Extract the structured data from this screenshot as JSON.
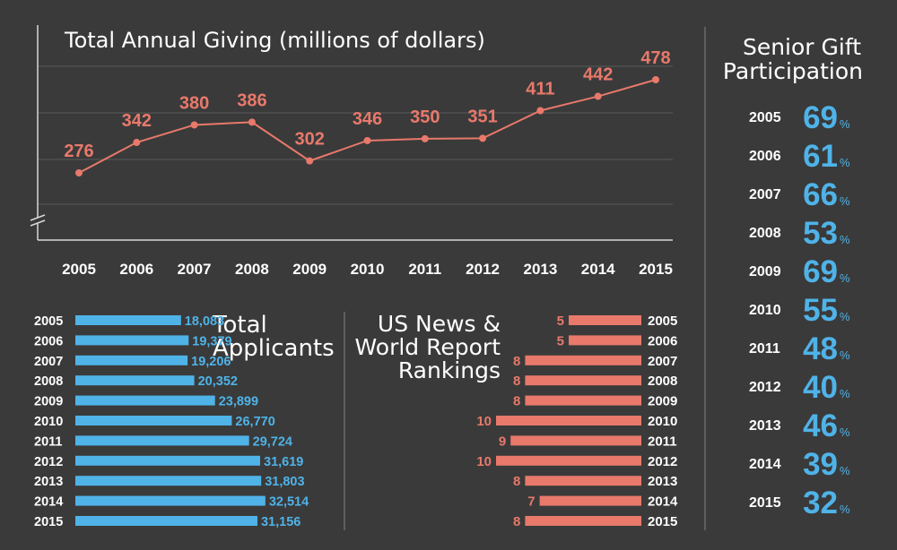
{
  "colors": {
    "background": "#3a3a3a",
    "text": "#ffffff",
    "salmon": "#e8796b",
    "blue": "#4fb3e8",
    "grid": "#5a5a5a",
    "axis": "#d8d8d8"
  },
  "chart_data": [
    {
      "type": "line",
      "title": "Total Annual Giving (millions of dollars)",
      "categories": [
        "2005",
        "2006",
        "2007",
        "2008",
        "2009",
        "2010",
        "2011",
        "2012",
        "2013",
        "2014",
        "2015"
      ],
      "values": [
        276,
        342,
        380,
        386,
        302,
        346,
        350,
        351,
        411,
        442,
        478
      ],
      "ylim": [
        150,
        500
      ],
      "xlabel": "",
      "ylabel": "",
      "grid": true
    },
    {
      "type": "bar",
      "orientation": "horizontal",
      "title": "Total Applicants",
      "categories": [
        "2005",
        "2006",
        "2007",
        "2008",
        "2009",
        "2010",
        "2011",
        "2012",
        "2013",
        "2014",
        "2015"
      ],
      "values": [
        18083,
        19379,
        19206,
        20352,
        23899,
        26770,
        29724,
        31619,
        31803,
        32514,
        31156
      ],
      "value_labels": [
        "18,083",
        "19,379",
        "19,206",
        "20,352",
        "23,899",
        "26,770",
        "29,724",
        "31,619",
        "31,803",
        "32,514",
        "31,156"
      ]
    },
    {
      "type": "bar",
      "orientation": "horizontal",
      "title": "US News & World Report Rankings",
      "categories": [
        "2005",
        "2006",
        "2007",
        "2008",
        "2009",
        "2010",
        "2011",
        "2012",
        "2013",
        "2014",
        "2015"
      ],
      "values": [
        5,
        5,
        8,
        8,
        8,
        10,
        9,
        10,
        8,
        7,
        8
      ]
    },
    {
      "type": "table",
      "title": "Senior Gift Participation",
      "categories": [
        "2005",
        "2006",
        "2007",
        "2008",
        "2009",
        "2010",
        "2011",
        "2012",
        "2013",
        "2014",
        "2015"
      ],
      "values": [
        69,
        61,
        66,
        53,
        69,
        55,
        48,
        40,
        46,
        39,
        32
      ],
      "unit": "%"
    }
  ]
}
